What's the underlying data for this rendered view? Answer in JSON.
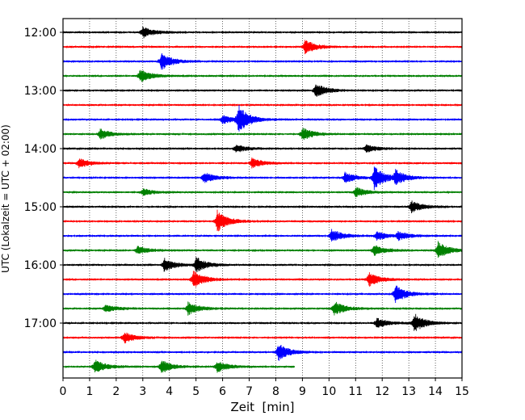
{
  "chart_data": {
    "type": "line",
    "title": "",
    "xlabel": "Zeit  [min]",
    "ylabel": "UTC (Lokalzeit = UTC + 02:00)",
    "xlim": [
      0,
      15
    ],
    "x_ticks": [
      0,
      1,
      2,
      3,
      4,
      5,
      6,
      7,
      8,
      9,
      10,
      11,
      12,
      13,
      14,
      15
    ],
    "y_tick_labels": [
      "12:00",
      "13:00",
      "14:00",
      "15:00",
      "16:00",
      "17:00"
    ],
    "trace_interval_minutes": 15,
    "vertical_grid": true,
    "grid_style": "dotted",
    "colors": [
      "#000000",
      "#ff0000",
      "#0000ff",
      "#008000"
    ],
    "traces": [
      {
        "start": "12:00",
        "color": "#000000",
        "events": [
          [
            3.0,
            1.0
          ]
        ]
      },
      {
        "start": "12:15",
        "color": "#ff0000",
        "events": [
          [
            9.1,
            1.3
          ]
        ]
      },
      {
        "start": "12:30",
        "color": "#0000ff",
        "events": [
          [
            3.7,
            1.6
          ]
        ]
      },
      {
        "start": "12:45",
        "color": "#008000",
        "events": [
          [
            2.9,
            1.2
          ]
        ]
      },
      {
        "start": "13:00",
        "color": "#000000",
        "events": [
          [
            9.5,
            1.3
          ]
        ]
      },
      {
        "start": "13:15",
        "color": "#ff0000",
        "events": []
      },
      {
        "start": "13:30",
        "color": "#0000ff",
        "events": [
          [
            6.6,
            2.6
          ],
          [
            6.0,
            0.8
          ]
        ]
      },
      {
        "start": "13:45",
        "color": "#008000",
        "events": [
          [
            1.4,
            0.9
          ],
          [
            9.0,
            1.2
          ]
        ]
      },
      {
        "start": "14:00",
        "color": "#000000",
        "events": [
          [
            6.5,
            0.7
          ],
          [
            11.4,
            0.7
          ]
        ]
      },
      {
        "start": "14:15",
        "color": "#ff0000",
        "events": [
          [
            0.6,
            0.9
          ],
          [
            7.1,
            0.9
          ]
        ]
      },
      {
        "start": "14:30",
        "color": "#0000ff",
        "events": [
          [
            5.3,
            1.0
          ],
          [
            10.6,
            1.0
          ],
          [
            11.7,
            2.2
          ],
          [
            12.5,
            1.2
          ]
        ]
      },
      {
        "start": "14:45",
        "color": "#008000",
        "events": [
          [
            3.0,
            0.6
          ],
          [
            11.0,
            0.9
          ]
        ]
      },
      {
        "start": "15:00",
        "color": "#000000",
        "events": [
          [
            13.1,
            1.1
          ]
        ]
      },
      {
        "start": "15:15",
        "color": "#ff0000",
        "events": [
          [
            5.8,
            2.0
          ]
        ]
      },
      {
        "start": "15:30",
        "color": "#0000ff",
        "events": [
          [
            10.1,
            1.2
          ],
          [
            11.8,
            0.8
          ],
          [
            12.6,
            0.7
          ]
        ]
      },
      {
        "start": "15:45",
        "color": "#008000",
        "events": [
          [
            2.8,
            0.7
          ],
          [
            11.7,
            1.0
          ],
          [
            14.1,
            1.6
          ]
        ]
      },
      {
        "start": "16:00",
        "color": "#000000",
        "events": [
          [
            3.8,
            1.2
          ],
          [
            5.0,
            1.4
          ]
        ]
      },
      {
        "start": "16:15",
        "color": "#ff0000",
        "events": [
          [
            4.9,
            1.6
          ],
          [
            11.5,
            1.3
          ]
        ]
      },
      {
        "start": "16:30",
        "color": "#0000ff",
        "events": [
          [
            12.5,
            1.7
          ]
        ]
      },
      {
        "start": "16:45",
        "color": "#008000",
        "events": [
          [
            1.6,
            0.7
          ],
          [
            4.7,
            1.2
          ],
          [
            10.2,
            1.3
          ]
        ]
      },
      {
        "start": "17:00",
        "color": "#000000",
        "events": [
          [
            11.8,
            0.9
          ],
          [
            13.2,
            1.8
          ]
        ]
      },
      {
        "start": "17:15",
        "color": "#ff0000",
        "events": [
          [
            2.3,
            1.0
          ]
        ]
      },
      {
        "start": "17:30",
        "color": "#0000ff",
        "events": [
          [
            8.1,
            1.6
          ]
        ]
      },
      {
        "start": "17:45",
        "color": "#008000",
        "end_minute": 8.7,
        "events": [
          [
            1.2,
            1.3
          ],
          [
            3.7,
            1.2
          ],
          [
            5.8,
            1.0
          ]
        ]
      }
    ]
  }
}
